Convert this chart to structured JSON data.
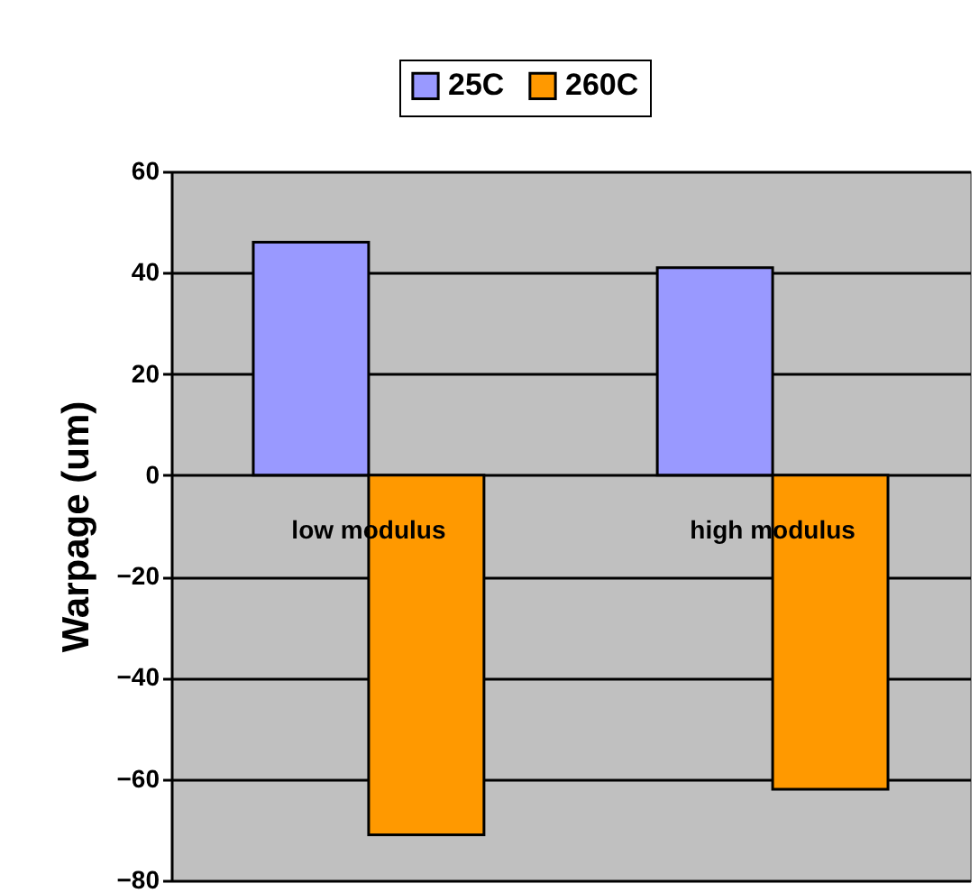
{
  "chart_data": {
    "type": "bar",
    "ylabel": "Warpage (um)",
    "categories": [
      "low modulus",
      "high modulus"
    ],
    "series": [
      {
        "name": "25C",
        "color": "#9999ff",
        "values": [
          46,
          41
        ]
      },
      {
        "name": "260C",
        "color": "#ff9900",
        "values": [
          -71,
          -62
        ]
      }
    ],
    "ylim": [
      -80,
      60
    ],
    "yticks": [
      -80,
      -60,
      -40,
      -20,
      0,
      20,
      40,
      60
    ],
    "grid": "y",
    "legend": "top"
  }
}
